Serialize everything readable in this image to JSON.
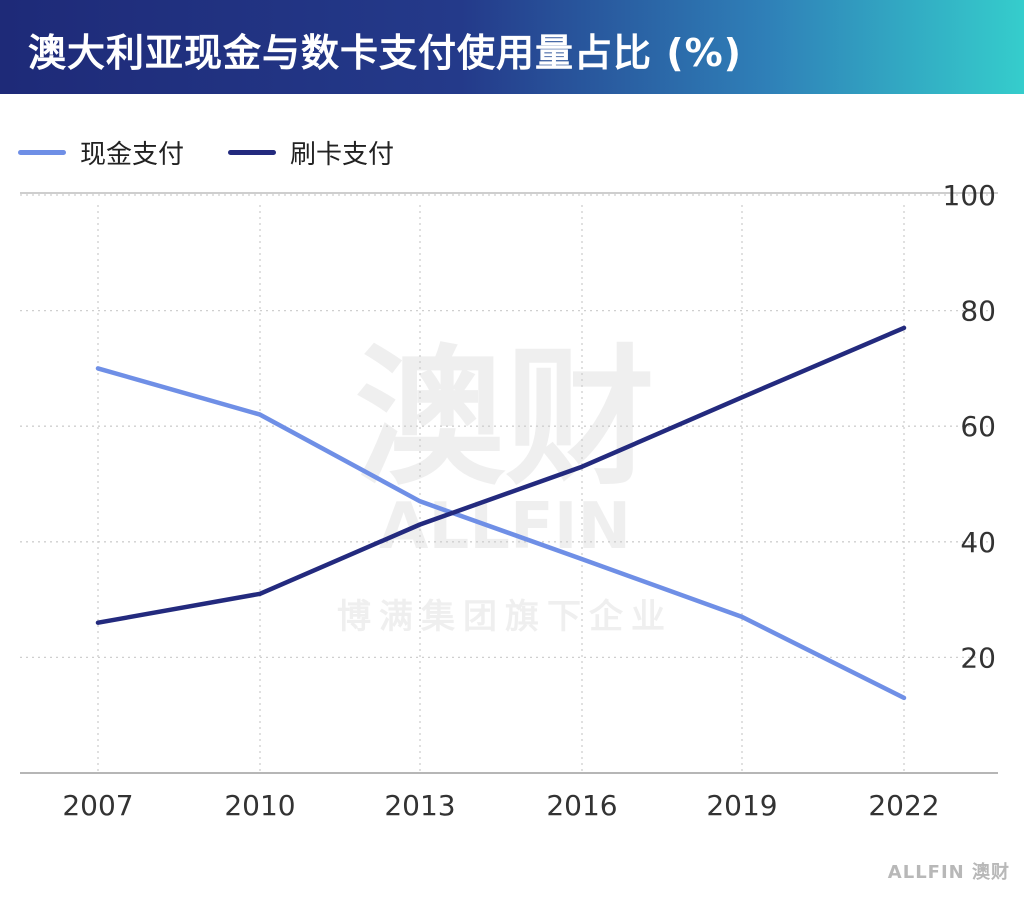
{
  "header": {
    "title": "澳大利亚现金与数卡支付使用量占比 (%)"
  },
  "watermark": {
    "brand": "澳财",
    "latin": "ALLFIN",
    "tagline": "博满集团旗下企业"
  },
  "logo": {
    "text": "ALLFIN 澳财"
  },
  "colors": {
    "cash": "#6f8fe6",
    "card": "#232a7e",
    "grid": "#c8c8c8",
    "header_start": "#1e2a78",
    "header_end": "#35cdcc"
  },
  "chart_data": {
    "type": "line",
    "title": "澳大利亚现金与数卡支付使用量占比 (%)",
    "x": [
      "2007",
      "2010",
      "2013",
      "2016",
      "2019",
      "2022"
    ],
    "series": [
      {
        "name": "现金支付",
        "values": [
          70,
          62,
          47,
          37,
          27,
          13
        ],
        "color": "#6f8fe6"
      },
      {
        "name": "刷卡支付",
        "values": [
          26,
          31,
          43,
          53,
          65,
          77
        ],
        "color": "#232a7e"
      }
    ],
    "y_ticks": [
      "100",
      "80",
      "60",
      "40",
      "20"
    ],
    "ylim": [
      0,
      100
    ],
    "y_axis_side": "right",
    "grid": true,
    "legend": "top-left",
    "xlabel": "",
    "ylabel": ""
  }
}
